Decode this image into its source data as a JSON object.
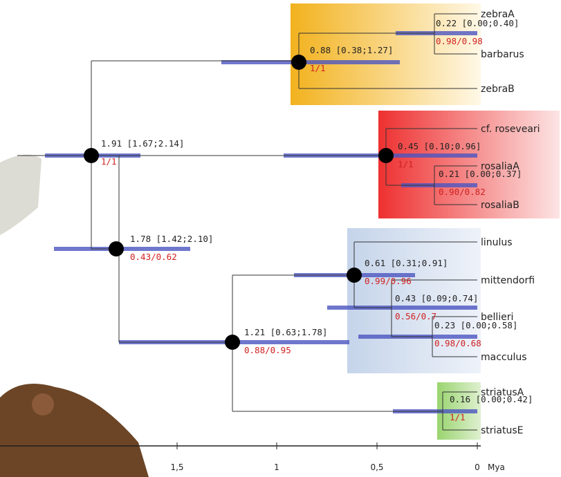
{
  "nodes": [
    {
      "label": "1.91 [1.67;2.14]",
      "support": "1/1"
    },
    {
      "label": "0.88 [0.38;1.27]",
      "support": "1/1"
    },
    {
      "label": "0.22 [0.00;0.40]",
      "support": "0.98/0.98"
    },
    {
      "label": "1.78 [1.42;2.10]",
      "support": "0.43/0.62"
    },
    {
      "label": "0.45 [0.10;0.96]",
      "support": "1/1"
    },
    {
      "label": "0.21 [0.00;0.37]",
      "support": "0.90/0.82"
    },
    {
      "label": "1.21 [0.63;1.78]",
      "support": "0.88/0.95"
    },
    {
      "label": "0.61 [0.31;0.91]",
      "support": "0.99/0.96"
    },
    {
      "label": "0.43 [0.09;0.74]",
      "support": "0.56/0.7"
    },
    {
      "label": "0.23 [0.00;0.58]",
      "support": "0.98/0.68"
    },
    {
      "label": "0.16 [0.00;0.42]",
      "support": "1/1"
    }
  ],
  "taxa": [
    "zebraA",
    "barbarus",
    "zebraB",
    "cf. roseveari",
    "rosaliaA",
    "rosaliaB",
    "linulus",
    "mittendorfi",
    "bellieri",
    "macculus",
    "striatusA",
    "striatusE"
  ],
  "axis": {
    "ticks": [
      "1,5",
      "1",
      "0,5",
      "0"
    ],
    "unit": "Mya"
  }
}
